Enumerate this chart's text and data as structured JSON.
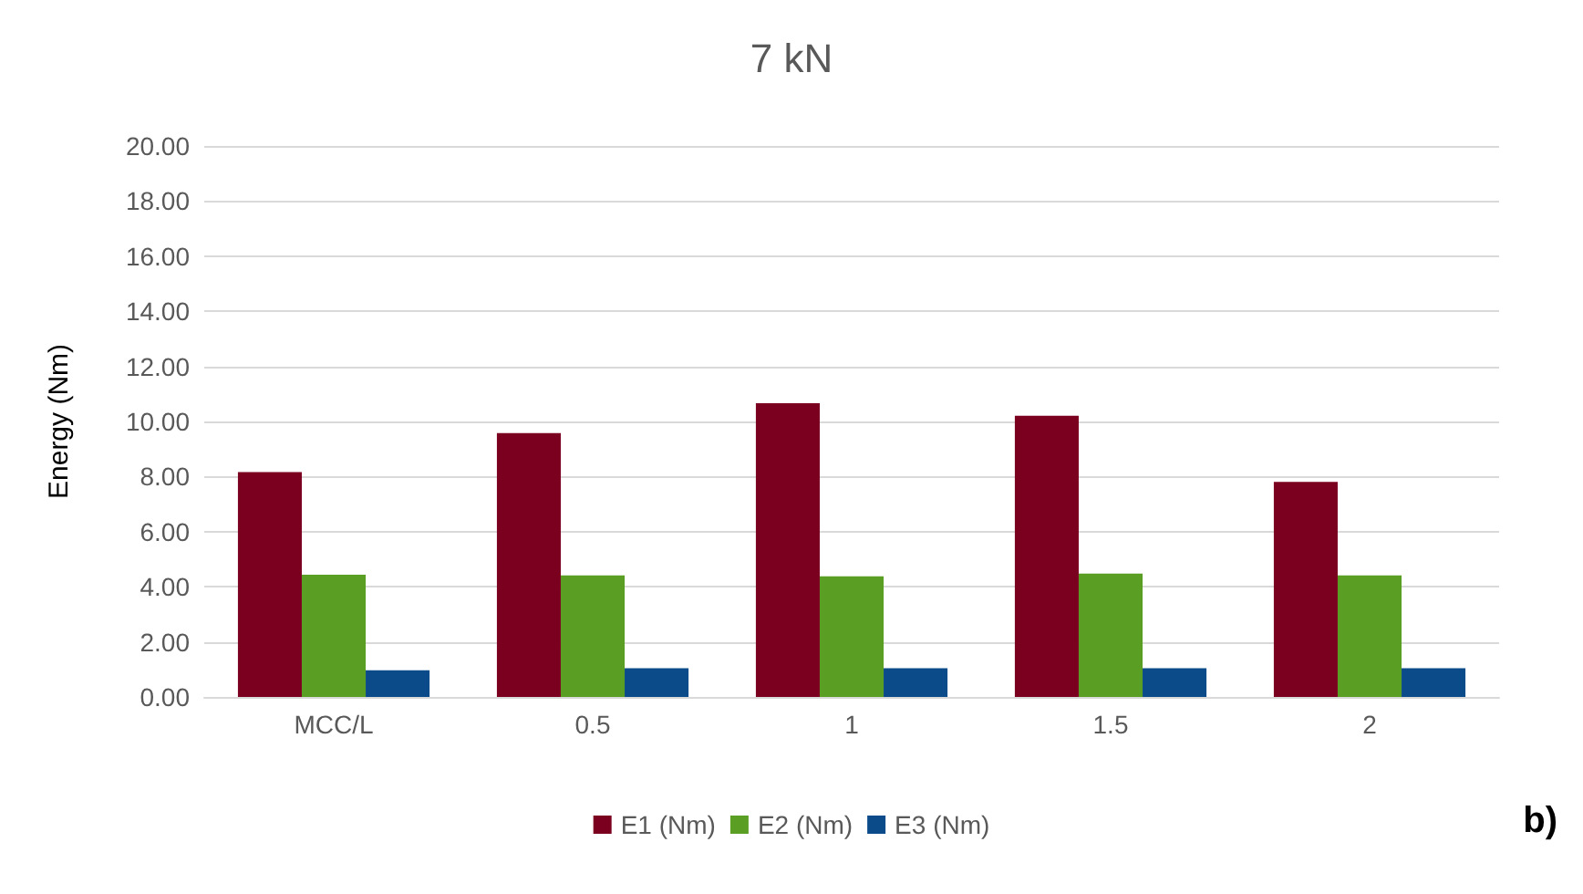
{
  "chart_data": {
    "type": "bar",
    "title": "7 kN",
    "ylabel": "Energy (Nm)",
    "categories": [
      "MCC/L",
      "0.5",
      "1",
      "1.5",
      "2"
    ],
    "series": [
      {
        "name": "E1 (Nm)",
        "color": "#7b0020",
        "values": [
          8.16,
          9.58,
          10.66,
          10.21,
          7.81
        ]
      },
      {
        "name": "E2 (Nm)",
        "color": "#5b9e24",
        "values": [
          4.44,
          4.41,
          4.38,
          4.48,
          4.41
        ]
      },
      {
        "name": "E3 (Nm)",
        "color": "#0b4b8a",
        "values": [
          0.97,
          1.04,
          1.04,
          1.04,
          1.04
        ]
      }
    ],
    "ylim": [
      0,
      20
    ],
    "yticks": [
      {
        "value": 0,
        "label": "0.00"
      },
      {
        "value": 2,
        "label": "2.00"
      },
      {
        "value": 4,
        "label": "4.00"
      },
      {
        "value": 6,
        "label": "6.00"
      },
      {
        "value": 8,
        "label": "8.00"
      },
      {
        "value": 10,
        "label": "10.00"
      },
      {
        "value": 12,
        "label": "12.00"
      },
      {
        "value": 14,
        "label": "14.00"
      },
      {
        "value": 16,
        "label": "16.00"
      },
      {
        "value": 18,
        "label": "18.00"
      },
      {
        "value": 20,
        "label": "20.00"
      }
    ],
    "grid": "y",
    "legend": "bottom",
    "annotations": [
      "b)"
    ]
  }
}
